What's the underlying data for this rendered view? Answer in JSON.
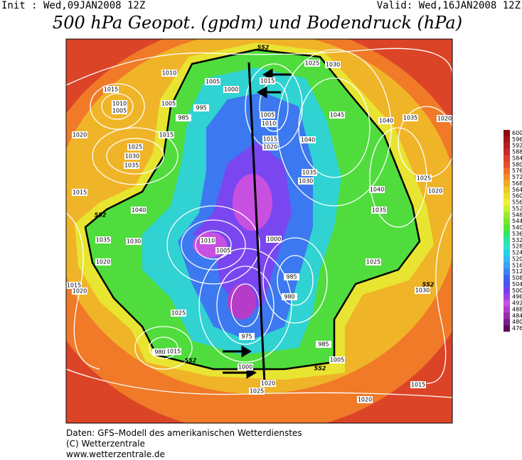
{
  "header": {
    "init": "Init : Wed,09JAN2008 12Z",
    "valid": "Valid: Wed,16JAN2008 12Z",
    "title": "500 hPa Geopot. (gpdm) und Bodendruck (hPa)"
  },
  "footer": {
    "source": "Daten: GFS–Modell des amerikanischen Wetterdienstes",
    "copyright": "(C) Wetterzentrale",
    "url": "www.wetterzentrale.de"
  },
  "colorbar": {
    "values": [
      600,
      596,
      592,
      588,
      584,
      580,
      576,
      572,
      568,
      564,
      560,
      556,
      552,
      548,
      544,
      540,
      536,
      532,
      528,
      524,
      520,
      516,
      512,
      508,
      504,
      500,
      496,
      492,
      488,
      484,
      480,
      476
    ],
    "colors": [
      "#8c0a0a",
      "#a01414",
      "#b41e1e",
      "#c82828",
      "#dc3c28",
      "#e65028",
      "#f06e28",
      "#f08c28",
      "#f0aa28",
      "#f0c828",
      "#f0dc28",
      "#f0f032",
      "#c8f032",
      "#a0e632",
      "#78e628",
      "#50e632",
      "#32e664",
      "#28e6a0",
      "#28e6c8",
      "#28d2e6",
      "#32bef0",
      "#3ca0f0",
      "#3c82f0",
      "#3c64f0",
      "#5050f0",
      "#7a3cf0",
      "#a040e8",
      "#c850e0",
      "#b43cc8",
      "#9a2aaa",
      "#7a1a8a",
      "#5a0a5a"
    ]
  },
  "map": {
    "labels": [
      "1010",
      "1015",
      "1010",
      "1005",
      "1005",
      "1020",
      "1025",
      "1030",
      "1035",
      "1015",
      "1005",
      "1000",
      "995",
      "985",
      "1015",
      "1005",
      "1010",
      "1015",
      "1020",
      "1025",
      "1030",
      "1045",
      "1040",
      "1035",
      "1030",
      "1040",
      "1035",
      "1020",
      "1025",
      "1020",
      "1040",
      "1035",
      "1015",
      "1040",
      "1035",
      "1030",
      "1020",
      "1015",
      "1020",
      "1010",
      "1005",
      "1000",
      "985",
      "980",
      "975",
      "1000",
      "1015",
      "1025",
      "980",
      "1025",
      "1030",
      "1020",
      "1015",
      "1025",
      "1020",
      "1005",
      "985",
      "552",
      "552",
      "552",
      "552",
      "552"
    ]
  }
}
